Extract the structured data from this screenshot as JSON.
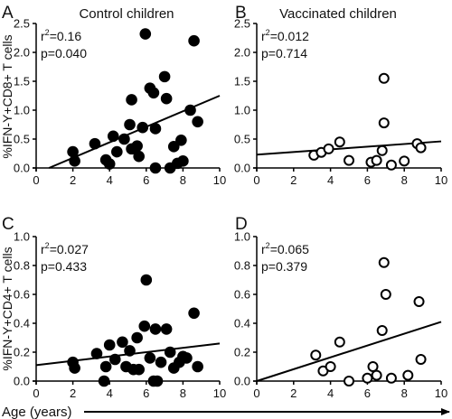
{
  "figure": {
    "xlabel": "Age (years)"
  },
  "chart_data": [
    {
      "type": "scatter",
      "panel_letter": "A",
      "title": "Control children",
      "ylabel": "%IFN-Y+CD8+ T cells",
      "xlim": [
        0,
        10
      ],
      "ylim": [
        0,
        2.5
      ],
      "x_ticks": [
        0,
        2,
        4,
        6,
        8,
        10
      ],
      "y_ticks": [
        "0.0",
        "0.5",
        "1.0",
        "1.5",
        "2.0",
        "2.5"
      ],
      "r2_label": "r",
      "r2_sup": "2",
      "r2_value": "=0.16",
      "p_text": "p=0.040",
      "marker": "filled",
      "fit_line": [
        [
          0.7,
          0.0
        ],
        [
          10,
          1.25
        ]
      ],
      "points": [
        [
          2.0,
          0.28
        ],
        [
          2.1,
          0.12
        ],
        [
          3.2,
          0.42
        ],
        [
          3.8,
          0.14
        ],
        [
          4.0,
          0.07
        ],
        [
          4.2,
          0.55
        ],
        [
          4.4,
          0.28
        ],
        [
          4.8,
          0.5
        ],
        [
          5.1,
          0.75
        ],
        [
          5.2,
          1.18
        ],
        [
          5.2,
          0.33
        ],
        [
          5.5,
          0.38
        ],
        [
          5.6,
          0.2
        ],
        [
          5.8,
          0.7
        ],
        [
          5.95,
          2.32
        ],
        [
          6.2,
          1.38
        ],
        [
          6.4,
          1.3
        ],
        [
          6.5,
          0.68
        ],
        [
          6.5,
          0.0
        ],
        [
          7.0,
          1.58
        ],
        [
          7.1,
          1.2
        ],
        [
          7.3,
          0.0
        ],
        [
          7.5,
          0.37
        ],
        [
          7.7,
          0.08
        ],
        [
          7.9,
          0.48
        ],
        [
          8.0,
          0.12
        ],
        [
          8.4,
          1.0
        ],
        [
          8.6,
          2.2
        ],
        [
          8.8,
          0.8
        ]
      ]
    },
    {
      "type": "scatter",
      "panel_letter": "B",
      "title": "Vaccinated children",
      "ylabel": "",
      "xlim": [
        0,
        10
      ],
      "ylim": [
        0,
        2.5
      ],
      "x_ticks": [
        0,
        2,
        4,
        6,
        8,
        10
      ],
      "y_ticks": [
        "0.0",
        "0.5",
        "1.0",
        "1.5",
        "2.0",
        "2.5"
      ],
      "r2_label": "r",
      "r2_sup": "2",
      "r2_value": "=0.012",
      "p_text": "p=0.714",
      "marker": "open",
      "fit_line": [
        [
          0,
          0.23
        ],
        [
          10,
          0.46
        ]
      ],
      "points": [
        [
          3.1,
          0.22
        ],
        [
          3.5,
          0.27
        ],
        [
          3.9,
          0.33
        ],
        [
          4.5,
          0.45
        ],
        [
          5.0,
          0.13
        ],
        [
          6.2,
          0.1
        ],
        [
          6.5,
          0.13
        ],
        [
          6.8,
          0.3
        ],
        [
          6.9,
          0.78
        ],
        [
          6.9,
          1.55
        ],
        [
          7.3,
          0.05
        ],
        [
          8.0,
          0.12
        ],
        [
          8.7,
          0.42
        ],
        [
          8.9,
          0.35
        ]
      ]
    },
    {
      "type": "scatter",
      "panel_letter": "C",
      "title": "",
      "ylabel": "%IFN-Y+CD4+ T cells",
      "xlim": [
        0,
        10
      ],
      "ylim": [
        0,
        1.0
      ],
      "x_ticks": [
        0,
        2,
        4,
        6,
        8,
        10
      ],
      "y_ticks": [
        "0.0",
        "0.2",
        "0.4",
        "0.6",
        "0.8",
        "1.0"
      ],
      "r2_label": "r",
      "r2_sup": "2",
      "r2_value": "=0.027",
      "p_text": "p=0.433",
      "marker": "filled",
      "fit_line": [
        [
          0,
          0.11
        ],
        [
          10,
          0.26
        ]
      ],
      "points": [
        [
          2.0,
          0.13
        ],
        [
          2.1,
          0.09
        ],
        [
          3.3,
          0.19
        ],
        [
          3.7,
          0.0
        ],
        [
          3.8,
          0.1
        ],
        [
          4.0,
          0.25
        ],
        [
          4.3,
          0.15
        ],
        [
          4.7,
          0.27
        ],
        [
          4.9,
          0.1
        ],
        [
          5.1,
          0.21
        ],
        [
          5.3,
          0.08
        ],
        [
          5.5,
          0.3
        ],
        [
          5.6,
          0.08
        ],
        [
          5.9,
          0.38
        ],
        [
          6.0,
          0.7
        ],
        [
          6.2,
          0.16
        ],
        [
          6.4,
          0.0
        ],
        [
          6.5,
          0.36
        ],
        [
          6.6,
          0.0
        ],
        [
          6.8,
          0.13
        ],
        [
          7.1,
          0.36
        ],
        [
          7.3,
          0.2
        ],
        [
          7.5,
          0.09
        ],
        [
          7.8,
          0.13
        ],
        [
          8.0,
          0.17
        ],
        [
          8.2,
          0.16
        ],
        [
          8.6,
          0.47
        ],
        [
          8.8,
          0.1
        ]
      ]
    },
    {
      "type": "scatter",
      "panel_letter": "D",
      "title": "",
      "ylabel": "",
      "xlim": [
        0,
        10
      ],
      "ylim": [
        0,
        1.0
      ],
      "x_ticks": [
        0,
        2,
        4,
        6,
        8,
        10
      ],
      "y_ticks": [
        "0.0",
        "0.2",
        "0.4",
        "0.6",
        "0.8",
        "1.0"
      ],
      "r2_label": "r",
      "r2_sup": "2",
      "r2_value": "=0.065",
      "p_text": "p=0.379",
      "marker": "open",
      "fit_line": [
        [
          0,
          0.0
        ],
        [
          10,
          0.41
        ]
      ],
      "points": [
        [
          3.2,
          0.18
        ],
        [
          3.6,
          0.07
        ],
        [
          4.0,
          0.1
        ],
        [
          4.5,
          0.27
        ],
        [
          5.0,
          0.0
        ],
        [
          6.0,
          0.02
        ],
        [
          6.3,
          0.1
        ],
        [
          6.5,
          0.04
        ],
        [
          6.8,
          0.35
        ],
        [
          6.9,
          0.82
        ],
        [
          7.0,
          0.6
        ],
        [
          7.3,
          0.02
        ],
        [
          8.2,
          0.04
        ],
        [
          8.8,
          0.55
        ],
        [
          8.9,
          0.15
        ]
      ]
    }
  ]
}
